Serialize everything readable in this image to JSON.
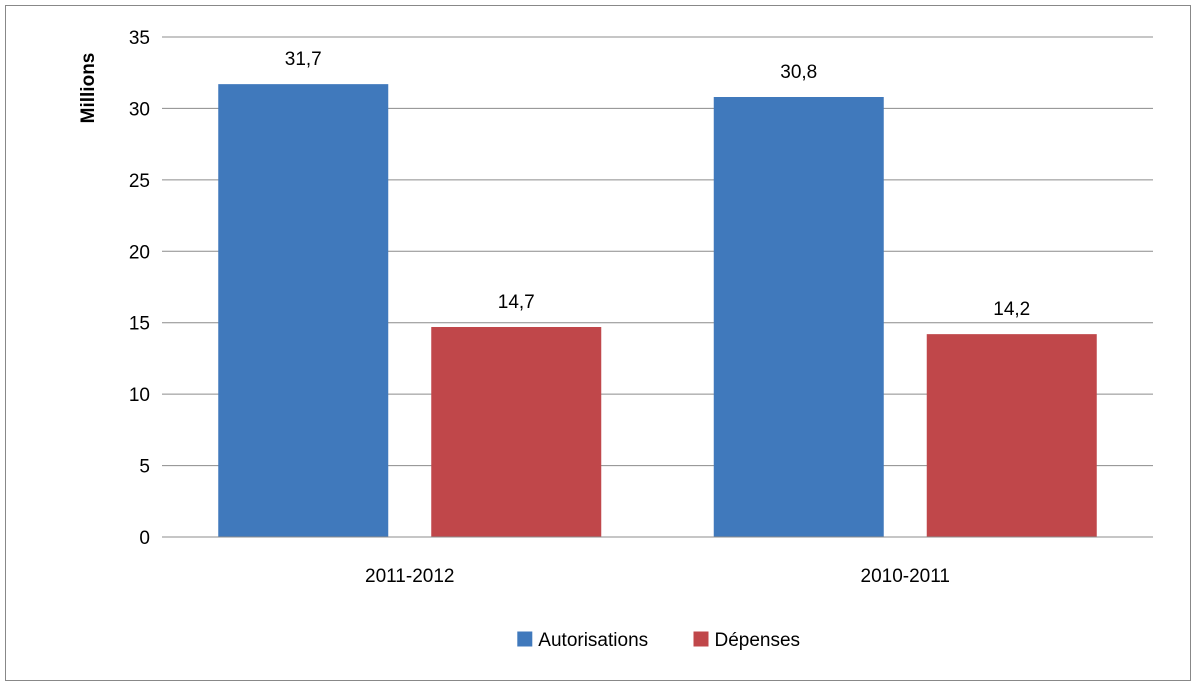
{
  "chart_data": {
    "type": "bar",
    "categories": [
      "2011-2012",
      "2010-2011"
    ],
    "series": [
      {
        "name": "Autorisations",
        "values": [
          31.7,
          30.8
        ],
        "labels": [
          "31,7",
          "30,8"
        ],
        "color": "#4079BC"
      },
      {
        "name": "Dépenses",
        "values": [
          14.7,
          14.2
        ],
        "labels": [
          "14,7",
          "14,2"
        ],
        "color": "#C0474A"
      }
    ],
    "title": "",
    "xlabel": "",
    "ylabel": "Millions",
    "ylim": [
      0,
      35
    ],
    "yticks": [
      0,
      5,
      10,
      15,
      20,
      25,
      30,
      35
    ],
    "grid": true,
    "legend": "bottom"
  }
}
